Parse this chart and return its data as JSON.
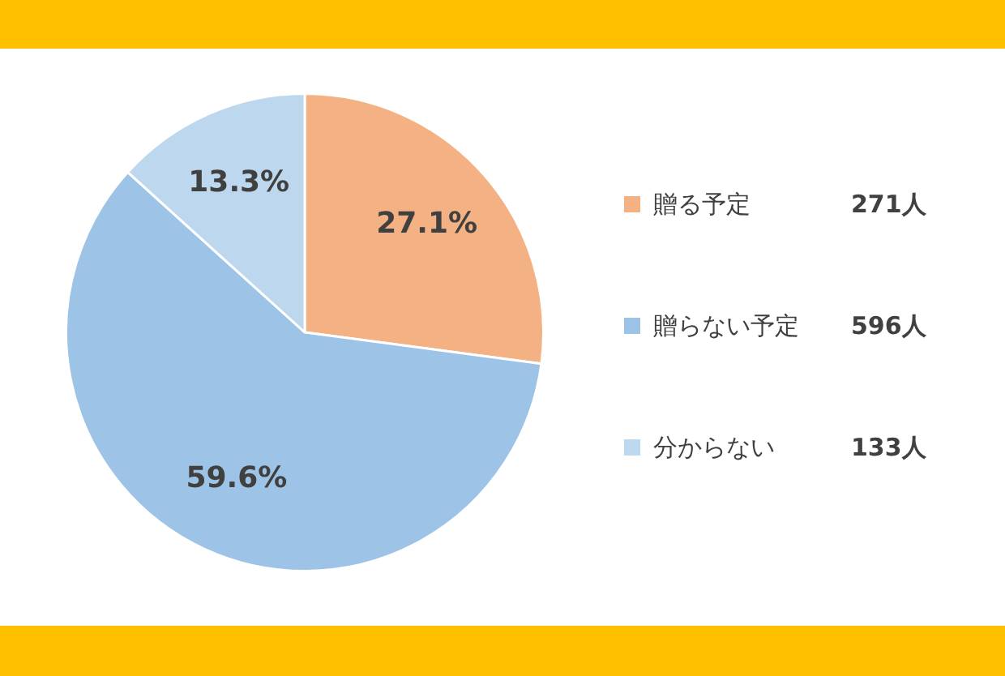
{
  "chart_data": {
    "type": "pie",
    "categories": [
      "贈る予定",
      "贈らない予定",
      "分からない"
    ],
    "values": [
      27.1,
      59.6,
      13.3
    ],
    "colors": [
      "#f4b183",
      "#9dc3e6",
      "#bdd7ee"
    ],
    "value_labels": [
      "27.1%",
      "59.6%",
      "13.3%"
    ],
    "annotations": [
      "271人",
      "596人",
      "133人"
    ],
    "legend": "right"
  }
}
